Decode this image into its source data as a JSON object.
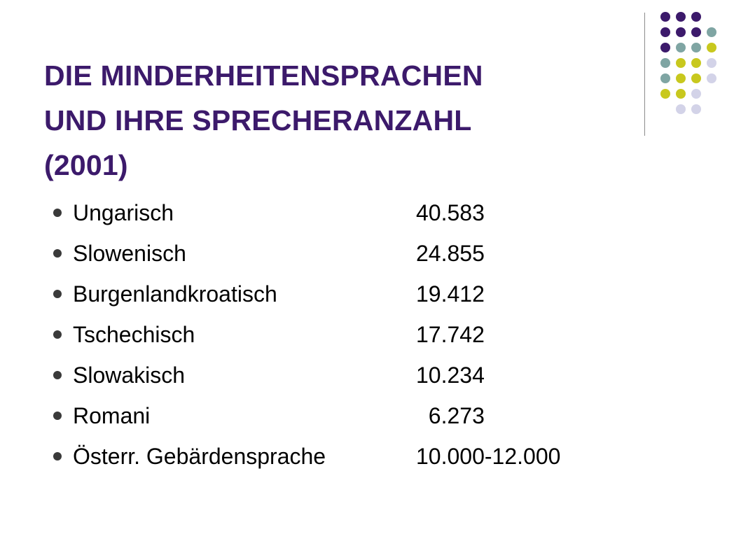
{
  "title": {
    "line1": "DIE MINDERHEITENSPRACHEN",
    "line2": "UND IHRE SPRECHERANZAHL",
    "line3": "(2001)"
  },
  "colors": {
    "title": "#3c1a6b",
    "dot_purple": "#3c1a6b",
    "dot_teal": "#7fa5a3",
    "dot_lime": "#c8c81e",
    "dot_lavender": "#d3d3e8"
  },
  "languages": [
    {
      "name": "Ungarisch",
      "count": "40.583"
    },
    {
      "name": "Slowenisch",
      "count": "24.855"
    },
    {
      "name": "Burgenlandkroatisch",
      "count": "19.412"
    },
    {
      "name": "Tschechisch",
      "count": "17.742"
    },
    {
      "name": "Slowakisch",
      "count": "10.234"
    },
    {
      "name": "Romani",
      "count": "  6.273"
    },
    {
      "name": "Österr. Gebärdensprache",
      "count": "10.000-12.000"
    }
  ]
}
